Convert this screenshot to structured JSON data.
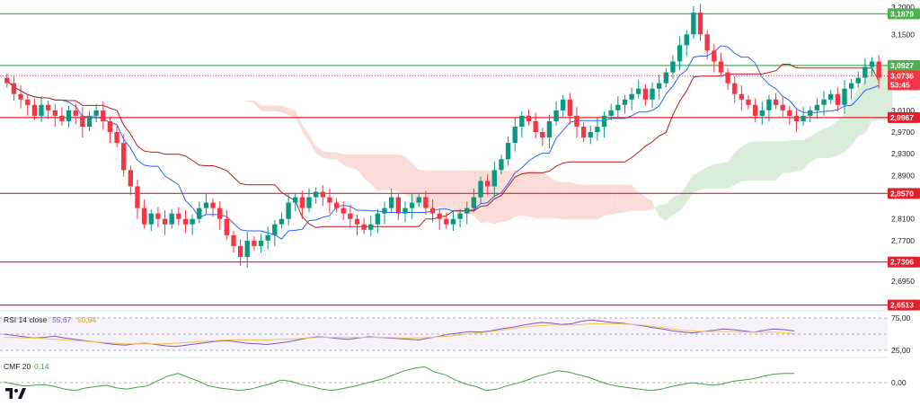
{
  "colors": {
    "up": "#089981",
    "down": "#f23645",
    "green_level": "#4caf50",
    "red_level": "#e0202a",
    "tenkan": "#2962ff",
    "kijun": "#b71c1c",
    "cloud_bull": "#cfe8cf",
    "cloud_bear": "#f9d3d0",
    "rsi_line": "#7e57c2",
    "rsi_ma": "#f5c451",
    "cmf_line": "#43a047",
    "axis_text": "#222222"
  },
  "icons": {
    "logo": "tradingview-logo"
  },
  "chart_data": [
    {
      "type": "candlestick",
      "title": "",
      "ylim": [
        2.654,
        3.21
      ],
      "y_ticks": [
        "3,2000",
        "3,1500",
        "3,0100",
        "2,9700",
        "2,9300",
        "2,8900",
        "2,8100",
        "2,7700",
        "2,6950"
      ],
      "horizontal_levels": [
        {
          "value": "3,1879",
          "kind": "green"
        },
        {
          "value": "3,0927",
          "kind": "green"
        },
        {
          "value": "2,9967",
          "kind": "red"
        },
        {
          "value": "2,8570",
          "kind": "red"
        },
        {
          "value": "2,7306",
          "kind": "red"
        },
        {
          "value": "2,6513",
          "kind": "red"
        }
      ],
      "current_price": "3,0736",
      "countdown": "53:45",
      "close_series": [
        3.06,
        3.04,
        3.03,
        3.02,
        3.0,
        3.02,
        3.01,
        3.0,
        2.99,
        3.01,
        3.0,
        2.98,
        3.0,
        3.01,
        2.99,
        2.97,
        2.95,
        2.9,
        2.87,
        2.83,
        2.8,
        2.82,
        2.81,
        2.8,
        2.82,
        2.81,
        2.8,
        2.81,
        2.83,
        2.84,
        2.83,
        2.81,
        2.78,
        2.76,
        2.74,
        2.77,
        2.76,
        2.77,
        2.78,
        2.8,
        2.81,
        2.84,
        2.85,
        2.83,
        2.85,
        2.86,
        2.85,
        2.84,
        2.83,
        2.82,
        2.81,
        2.8,
        2.79,
        2.8,
        2.82,
        2.83,
        2.85,
        2.82,
        2.83,
        2.84,
        2.85,
        2.83,
        2.82,
        2.81,
        2.8,
        2.81,
        2.82,
        2.83,
        2.85,
        2.88,
        2.87,
        2.9,
        2.92,
        2.95,
        2.98,
        3.0,
        2.99,
        2.97,
        2.96,
        2.99,
        3.01,
        3.03,
        3.0,
        2.98,
        2.96,
        2.97,
        2.98,
        3.0,
        3.01,
        3.02,
        3.03,
        3.04,
        3.05,
        3.03,
        3.05,
        3.06,
        3.08,
        3.1,
        3.13,
        3.15,
        3.19,
        3.15,
        3.12,
        3.1,
        3.08,
        3.06,
        3.04,
        3.03,
        3.02,
        3.0,
        3.01,
        3.03,
        3.02,
        3.01,
        3.0,
        2.99,
        3.0,
        3.01,
        3.02,
        3.03,
        3.04,
        3.02,
        3.05,
        3.06,
        3.07,
        3.09,
        3.1,
        3.07
      ]
    },
    {
      "type": "line",
      "title": "RSI",
      "label": "RSI 14 close",
      "values_text": [
        "55,67",
        "50,94"
      ],
      "ylim": [
        25,
        75
      ],
      "y_ticks": [
        "75,00",
        "25,00"
      ],
      "series": [
        {
          "values": [
            50,
            48,
            46,
            44,
            45,
            47,
            44,
            42,
            40,
            38,
            36,
            34,
            33,
            35,
            36,
            34,
            32,
            31,
            33,
            35,
            37,
            39,
            40,
            38,
            36,
            35,
            34,
            36,
            38,
            41,
            44,
            46,
            45,
            43,
            42,
            44,
            46,
            45,
            44,
            43,
            42,
            41,
            44,
            47,
            50,
            52,
            54,
            53,
            55,
            58,
            60,
            63,
            66,
            68,
            67,
            65,
            66,
            70,
            72,
            70,
            68,
            67,
            65,
            63,
            60,
            58,
            55,
            53,
            52,
            54,
            56,
            58,
            57,
            55,
            53,
            56,
            58,
            57,
            55
          ]
        },
        {
          "values": [
            45,
            45,
            44,
            44,
            43,
            42,
            41,
            40,
            39,
            38,
            37,
            36,
            35,
            35,
            35,
            35,
            35,
            36,
            37,
            38,
            39,
            40,
            41,
            41,
            41,
            41,
            41,
            42,
            42,
            43,
            44,
            45,
            45,
            45,
            45,
            45,
            45,
            45,
            45,
            44,
            44,
            44,
            45,
            46,
            47,
            49,
            51,
            52,
            54,
            56,
            58,
            60,
            62,
            63,
            64,
            64,
            64,
            65,
            66,
            66,
            66,
            66,
            65,
            64,
            62,
            60,
            58,
            56,
            55,
            54,
            54,
            54,
            54,
            53,
            53,
            53,
            53,
            52,
            51
          ]
        }
      ]
    },
    {
      "type": "line",
      "title": "CMF",
      "label": "CMF 20",
      "values_text": [
        "0,14"
      ],
      "ylim": [
        -0.3,
        0.3
      ],
      "y_ticks": [
        "0,00"
      ],
      "series": [
        {
          "values": [
            0.01,
            -0.02,
            -0.05,
            -0.04,
            -0.03,
            -0.06,
            -0.1,
            -0.12,
            -0.08,
            -0.06,
            -0.04,
            -0.08,
            -0.1,
            -0.07,
            -0.05,
            0.03,
            0.1,
            0.14,
            0.08,
            0.02,
            -0.05,
            -0.08,
            -0.1,
            -0.12,
            -0.1,
            -0.06,
            -0.02,
            0.04,
            0.02,
            -0.03,
            -0.06,
            -0.1,
            -0.12,
            -0.09,
            -0.06,
            -0.02,
            0.02,
            0.06,
            0.12,
            0.18,
            0.22,
            0.24,
            0.16,
            0.12,
            0.04,
            -0.02,
            -0.06,
            -0.12,
            -0.1,
            -0.05,
            -0.01,
            0.04,
            0.1,
            0.14,
            0.18,
            0.16,
            0.12,
            0.08,
            0.02,
            -0.03,
            -0.06,
            -0.08,
            -0.1,
            -0.12,
            -0.1,
            -0.06,
            -0.03,
            0.0,
            -0.02,
            -0.04,
            -0.02,
            0.02,
            0.04,
            0.06,
            0.1,
            0.13,
            0.14,
            0.14
          ]
        }
      ]
    }
  ]
}
